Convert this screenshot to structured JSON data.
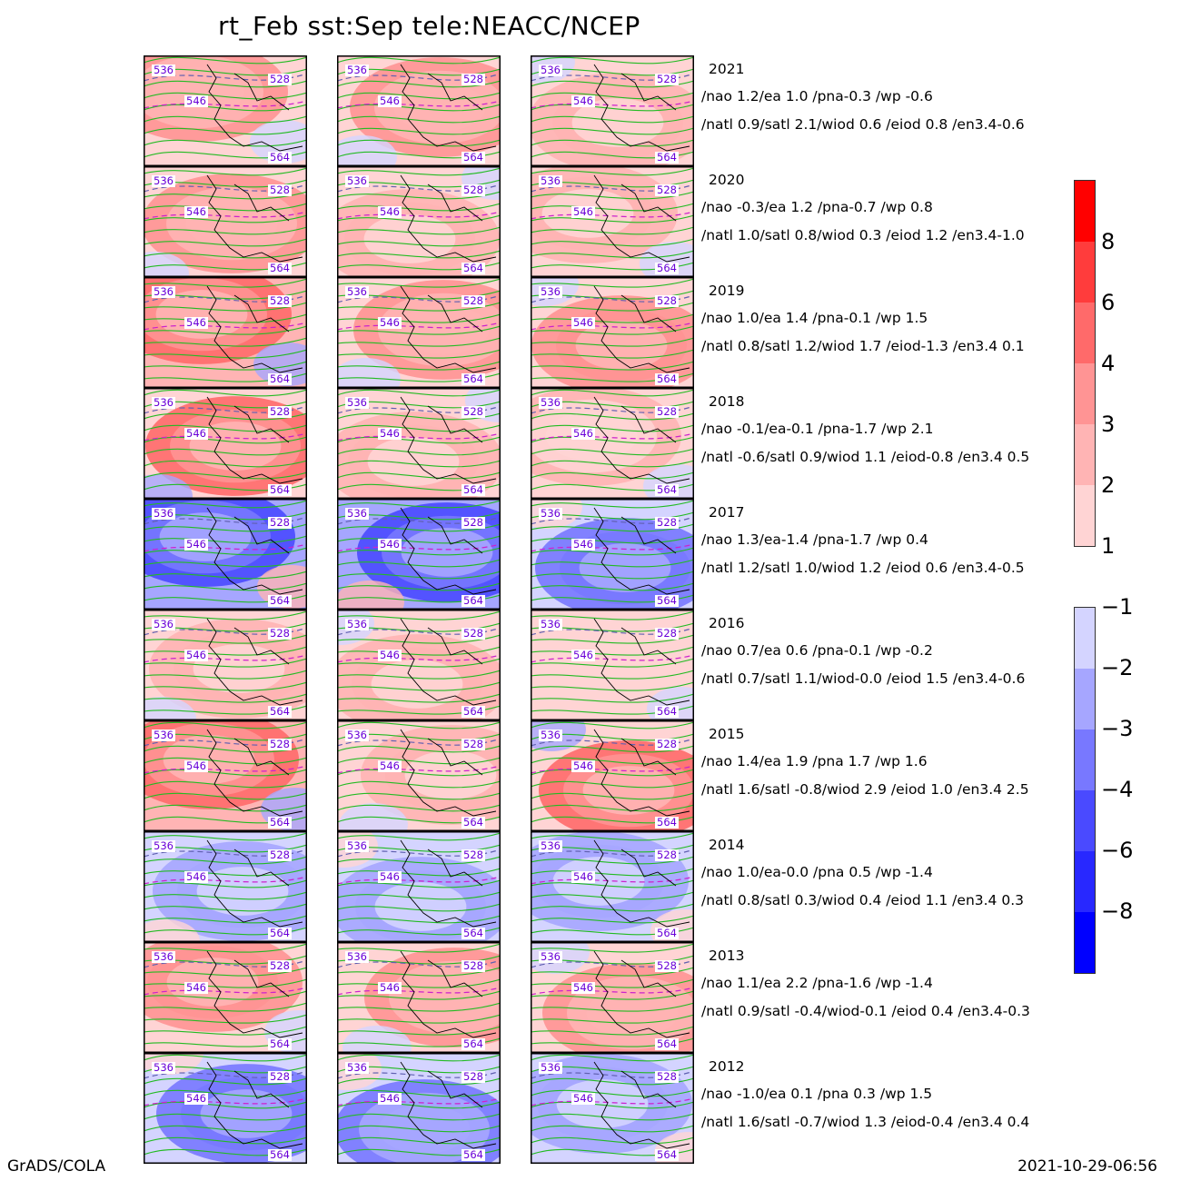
{
  "title": "rt_Feb  sst:Sep  tele:NEACC/NCEP",
  "footer_left": "GrADS/COLA",
  "footer_right": "2021-10-29-06:56",
  "colors": {
    "warm": [
      "#ffd4d4",
      "#ffb4b4",
      "#ff9494",
      "#ff6a6a",
      "#ff3c3c",
      "#ff0000"
    ],
    "cool": [
      "#d4d4ff",
      "#a6a6ff",
      "#7878ff",
      "#4a4aff",
      "#2828ff",
      "#0000ff"
    ],
    "contour_green": "#22bb22",
    "contour_blue_dash": "#6060b0",
    "contour_magenta_dash": "#cc22cc",
    "label_text": "#6a00d8"
  },
  "colorbar": {
    "positive_ticks": [
      "8",
      "6",
      "4",
      "3",
      "2",
      "1"
    ],
    "negative_ticks": [
      "-1",
      "-2",
      "-3",
      "-4",
      "-6",
      "-8"
    ]
  },
  "contour_labels": [
    "528",
    "536",
    "546",
    "564"
  ],
  "rows": [
    {
      "year": "2021",
      "line1": "/nao  1.2/ea 1.0 /pna-0.3 /wp -0.6",
      "line2": "/natl  0.9/satl  2.1/wiod 0.6 /eiod 0.8 /en3.4-0.6",
      "panels": [
        1.2,
        1.0,
        0.8
      ]
    },
    {
      "year": "2020",
      "line1": "/nao -0.3/ea 1.2 /pna-0.7 /wp  0.8",
      "line2": "/natl  1.0/satl  0.8/wiod 0.3 /eiod 1.2 /en3.4-1.0",
      "panels": [
        1.0,
        0.9,
        0.8
      ]
    },
    {
      "year": "2019",
      "line1": "/nao  1.0/ea 1.4 /pna-0.1 /wp  1.5",
      "line2": "/natl  0.8/satl  1.2/wiod 1.7 /eiod-1.3 /en3.4 0.1",
      "panels": [
        1.6,
        1.1,
        1.4
      ]
    },
    {
      "year": "2018",
      "line1": "/nao -0.1/ea-0.1 /pna-1.7 /wp  2.1",
      "line2": "/natl -0.6/satl  0.9/wiod 1.1 /eiod-0.8 /en3.4 0.5",
      "panels": [
        1.5,
        0.7,
        0.6
      ]
    },
    {
      "year": "2017",
      "line1": "/nao  1.3/ea-1.4 /pna-1.7 /wp  0.4",
      "line2": "/natl  1.2/satl  1.0/wiod 1.2 /eiod 0.6 /en3.4-0.5",
      "panels": [
        -1.6,
        -1.7,
        -1.4
      ]
    },
    {
      "year": "2016",
      "line1": "/nao  0.7/ea 0.6 /pna-0.1 /wp -0.2",
      "line2": "/natl  0.7/satl  1.1/wiod-0.0 /eiod 1.5 /en3.4-0.6",
      "panels": [
        0.8,
        0.7,
        0.4
      ]
    },
    {
      "year": "2015",
      "line1": "/nao  1.4/ea 1.9 /pna 1.7 /wp  1.6",
      "line2": "/natl  1.6/satl -0.8/wiod 2.9 /eiod 1.0 /en3.4 2.5",
      "panels": [
        1.6,
        0.9,
        1.5
      ]
    },
    {
      "year": "2014",
      "line1": "/nao  1.0/ea-0.0 /pna 0.5 /wp -1.4",
      "line2": "/natl  0.8/satl  0.3/wiod 0.4 /eiod 1.1 /en3.4 0.3",
      "panels": [
        -0.9,
        -0.8,
        -0.7
      ]
    },
    {
      "year": "2013",
      "line1": "/nao  1.1/ea 2.2 /pna-1.6 /wp -1.4",
      "line2": "/natl  0.9/satl -0.4/wiod-0.1 /eiod 0.4 /en3.4-0.3",
      "panels": [
        1.3,
        1.2,
        1.2
      ]
    },
    {
      "year": "2012",
      "line1": "/nao -1.0/ea 0.1 /pna 0.3 /wp  1.5",
      "line2": "/natl  1.6/satl -0.7/wiod 1.3 /eiod-0.4 /en3.4 0.4",
      "panels": [
        -1.4,
        -1.0,
        -0.8
      ]
    }
  ]
}
